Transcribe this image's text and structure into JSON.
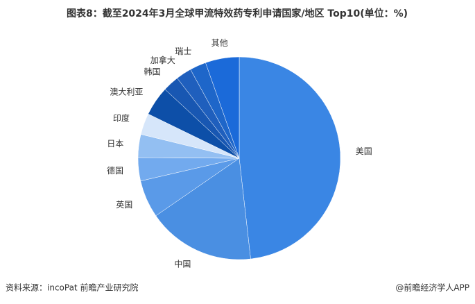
{
  "chart_data": {
    "type": "pie",
    "title": "图表8：截至2024年3月全球甲流特效药专利申请国家/地区 Top10(单位：%)",
    "categories": [
      "美国",
      "中国",
      "英国",
      "德国",
      "日本",
      "印度",
      "澳大利亚",
      "韩国",
      "加拿大",
      "瑞士",
      "其他"
    ],
    "values": [
      48.2,
      17.2,
      6.0,
      3.7,
      3.7,
      3.4,
      4.7,
      2.6,
      2.5,
      2.6,
      5.4
    ],
    "colors": [
      "#3a86e4",
      "#4a8fe2",
      "#5a9ae8",
      "#72aaee",
      "#93bff2",
      "#d6e6fa",
      "#0d4fa8",
      "#1857b2",
      "#1f5fbd",
      "#1e66c9",
      "#1b6ad9"
    ],
    "source": "资料来源：incoPat 前瞻产业研究院",
    "footer": "@前瞻经济学人APP"
  }
}
